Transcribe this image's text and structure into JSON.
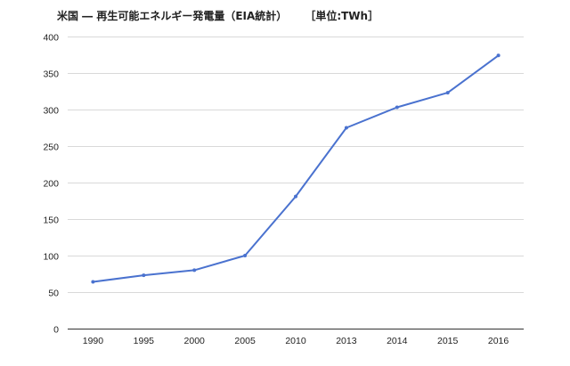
{
  "chart_data": {
    "type": "line",
    "title": "米国 ― 再生可能エネルギー発電量（EIA統計）",
    "unit_label": "［単位:TWh］",
    "categories": [
      "1990",
      "1995",
      "2000",
      "2005",
      "2010",
      "2013",
      "2014",
      "2015",
      "2016"
    ],
    "series": [
      {
        "values": [
          64,
          73,
          80,
          100,
          181,
          275,
          303,
          323,
          374
        ],
        "color": "#4a72cf"
      }
    ],
    "ylim": [
      0,
      400
    ],
    "yticks": [
      0,
      50,
      100,
      150,
      200,
      250,
      300,
      350,
      400
    ],
    "grid": true,
    "legend": "none",
    "xlabel": "",
    "ylabel": ""
  }
}
